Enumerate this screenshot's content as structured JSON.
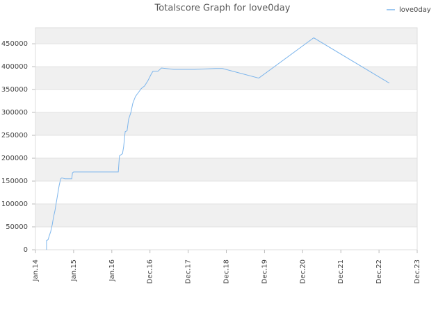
{
  "chart_data": {
    "type": "line",
    "title": "Totalscore Graph for love0day",
    "x": [
      0.29,
      0.29,
      0.33,
      0.36,
      0.4,
      0.44,
      0.47,
      0.51,
      0.55,
      0.58,
      0.62,
      0.66,
      0.69,
      0.77,
      0.84,
      0.95,
      0.97,
      1.0,
      2.17,
      2.2,
      2.28,
      2.31,
      2.35,
      2.4,
      2.44,
      2.5,
      2.55,
      2.62,
      2.71,
      2.77,
      2.86,
      2.95,
      3.04,
      3.08,
      3.21,
      3.3,
      3.62,
      4.17,
      4.72,
      4.9,
      5.85,
      7.29,
      9.27
    ],
    "series": [
      {
        "name": "love0day",
        "color": "#7cb5ec",
        "values": [
          0,
          20000,
          22000,
          30000,
          40000,
          55000,
          70000,
          85000,
          105000,
          120000,
          140000,
          155000,
          157000,
          155000,
          155000,
          155000,
          168000,
          170000,
          170000,
          205000,
          210000,
          225000,
          258000,
          260000,
          285000,
          300000,
          320000,
          335000,
          345000,
          352000,
          358000,
          370000,
          385000,
          390000,
          390000,
          397000,
          394000,
          394000,
          396000,
          396000,
          375000,
          463000,
          364000
        ]
      }
    ],
    "xlim": [
      0,
      10
    ],
    "xticks": [
      {
        "value": 0,
        "label": "Jan.14"
      },
      {
        "value": 1,
        "label": "Jan.15"
      },
      {
        "value": 2,
        "label": "Jan.16"
      },
      {
        "value": 3,
        "label": "Dec.16"
      },
      {
        "value": 4,
        "label": "Dec.17"
      },
      {
        "value": 5,
        "label": "Dec.18"
      },
      {
        "value": 6,
        "label": "Dec.19"
      },
      {
        "value": 7,
        "label": "Dec.20"
      },
      {
        "value": 8,
        "label": "Dec.21"
      },
      {
        "value": 9,
        "label": "Dec.22"
      },
      {
        "value": 10,
        "label": "Dec.23"
      }
    ],
    "ylim": [
      0,
      485000
    ],
    "yticks": [
      0,
      50000,
      100000,
      150000,
      200000,
      250000,
      300000,
      350000,
      400000,
      450000
    ],
    "grid": true,
    "legend": "top-right"
  }
}
